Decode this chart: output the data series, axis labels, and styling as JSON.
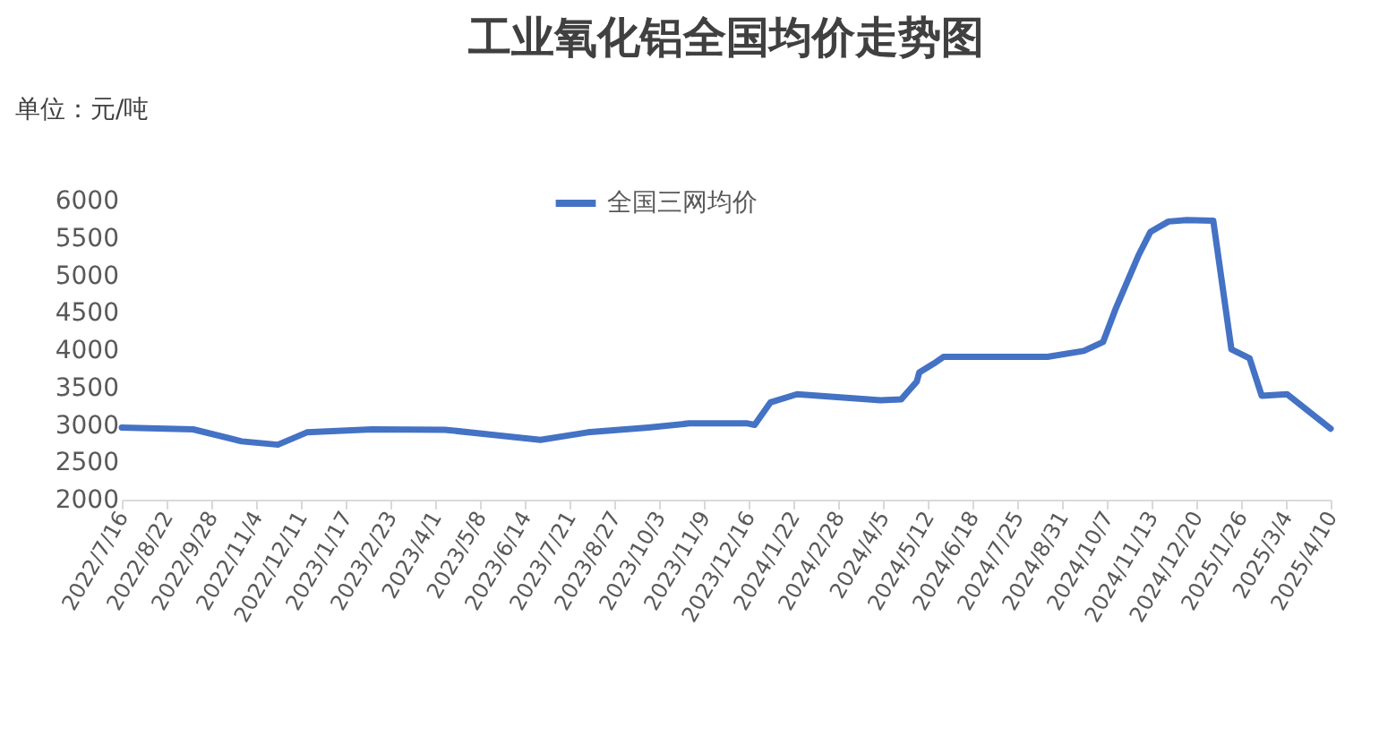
{
  "chart_data": {
    "type": "line",
    "title": "工业氧化铝全国均价走势图",
    "ylabel": "单位：元/吨",
    "x": [
      "2022-07-16",
      "2022-09-13",
      "2022-10-23",
      "2022-11-22",
      "2022-12-16",
      "2023-02-08",
      "2023-04-09",
      "2023-05-23",
      "2023-06-27",
      "2023-08-05",
      "2023-09-24",
      "2023-10-28",
      "2023-12-15",
      "2023-12-21",
      "2024-01-03",
      "2024-01-25",
      "2024-04-03",
      "2024-04-20",
      "2024-05-03",
      "2024-05-05",
      "2024-05-17",
      "2024-05-25",
      "2024-08-19",
      "2024-09-18",
      "2024-10-04",
      "2024-10-14",
      "2024-11-02",
      "2024-11-12",
      "2024-11-27",
      "2024-12-12",
      "2025-01-03",
      "2025-01-18",
      "2025-02-02",
      "2025-02-12",
      "2025-03-05",
      "2025-04-10"
    ],
    "series": [
      {
        "name": "全国三网均价",
        "color": "#4472c4",
        "values": [
          2965,
          2940,
          2780,
          2735,
          2900,
          2940,
          2935,
          2860,
          2800,
          2900,
          2965,
          3020,
          3020,
          3000,
          3300,
          3410,
          3330,
          3340,
          3580,
          3700,
          3820,
          3910,
          3910,
          3990,
          4110,
          4540,
          5260,
          5580,
          5720,
          5740,
          5730,
          4010,
          3890,
          3390,
          3410,
          2950
        ]
      }
    ],
    "xlim": [
      "2022-07-16",
      "2025-04-10"
    ],
    "xticks": [
      {
        "value": "2022-07-16",
        "label": "2022/7/16"
      },
      {
        "value": "2022-08-22",
        "label": "2022/8/22"
      },
      {
        "value": "2022-09-28",
        "label": "2022/9/28"
      },
      {
        "value": "2022-11-04",
        "label": "2022/11/4"
      },
      {
        "value": "2022-12-11",
        "label": "2022/12/11"
      },
      {
        "value": "2023-01-17",
        "label": "2023/1/17"
      },
      {
        "value": "2023-02-23",
        "label": "2023/2/23"
      },
      {
        "value": "2023-04-01",
        "label": "2023/4/1"
      },
      {
        "value": "2023-05-08",
        "label": "2023/5/8"
      },
      {
        "value": "2023-06-14",
        "label": "2023/6/14"
      },
      {
        "value": "2023-07-21",
        "label": "2023/7/21"
      },
      {
        "value": "2023-08-27",
        "label": "2023/8/27"
      },
      {
        "value": "2023-10-03",
        "label": "2023/10/3"
      },
      {
        "value": "2023-11-09",
        "label": "2023/11/9"
      },
      {
        "value": "2023-12-16",
        "label": "2023/12/16"
      },
      {
        "value": "2024-01-22",
        "label": "2024/1/22"
      },
      {
        "value": "2024-02-28",
        "label": "2024/2/28"
      },
      {
        "value": "2024-04-05",
        "label": "2024/4/5"
      },
      {
        "value": "2024-05-12",
        "label": "2024/5/12"
      },
      {
        "value": "2024-06-18",
        "label": "2024/6/18"
      },
      {
        "value": "2024-07-25",
        "label": "2024/7/25"
      },
      {
        "value": "2024-08-31",
        "label": "2024/8/31"
      },
      {
        "value": "2024-10-07",
        "label": "2024/10/7"
      },
      {
        "value": "2024-11-13",
        "label": "2024/11/13"
      },
      {
        "value": "2024-12-20",
        "label": "2024/12/20"
      },
      {
        "value": "2025-01-26",
        "label": "2025/1/26"
      },
      {
        "value": "2025-03-04",
        "label": "2025/3/4"
      },
      {
        "value": "2025-04-10",
        "label": "2025/4/10"
      }
    ],
    "ylim": [
      2000,
      6000
    ],
    "yticks": [
      2000,
      2500,
      3000,
      3500,
      4000,
      4500,
      5000,
      5500,
      6000
    ],
    "legend": "top",
    "grid": false,
    "marker": "none",
    "line_style": "solid"
  }
}
